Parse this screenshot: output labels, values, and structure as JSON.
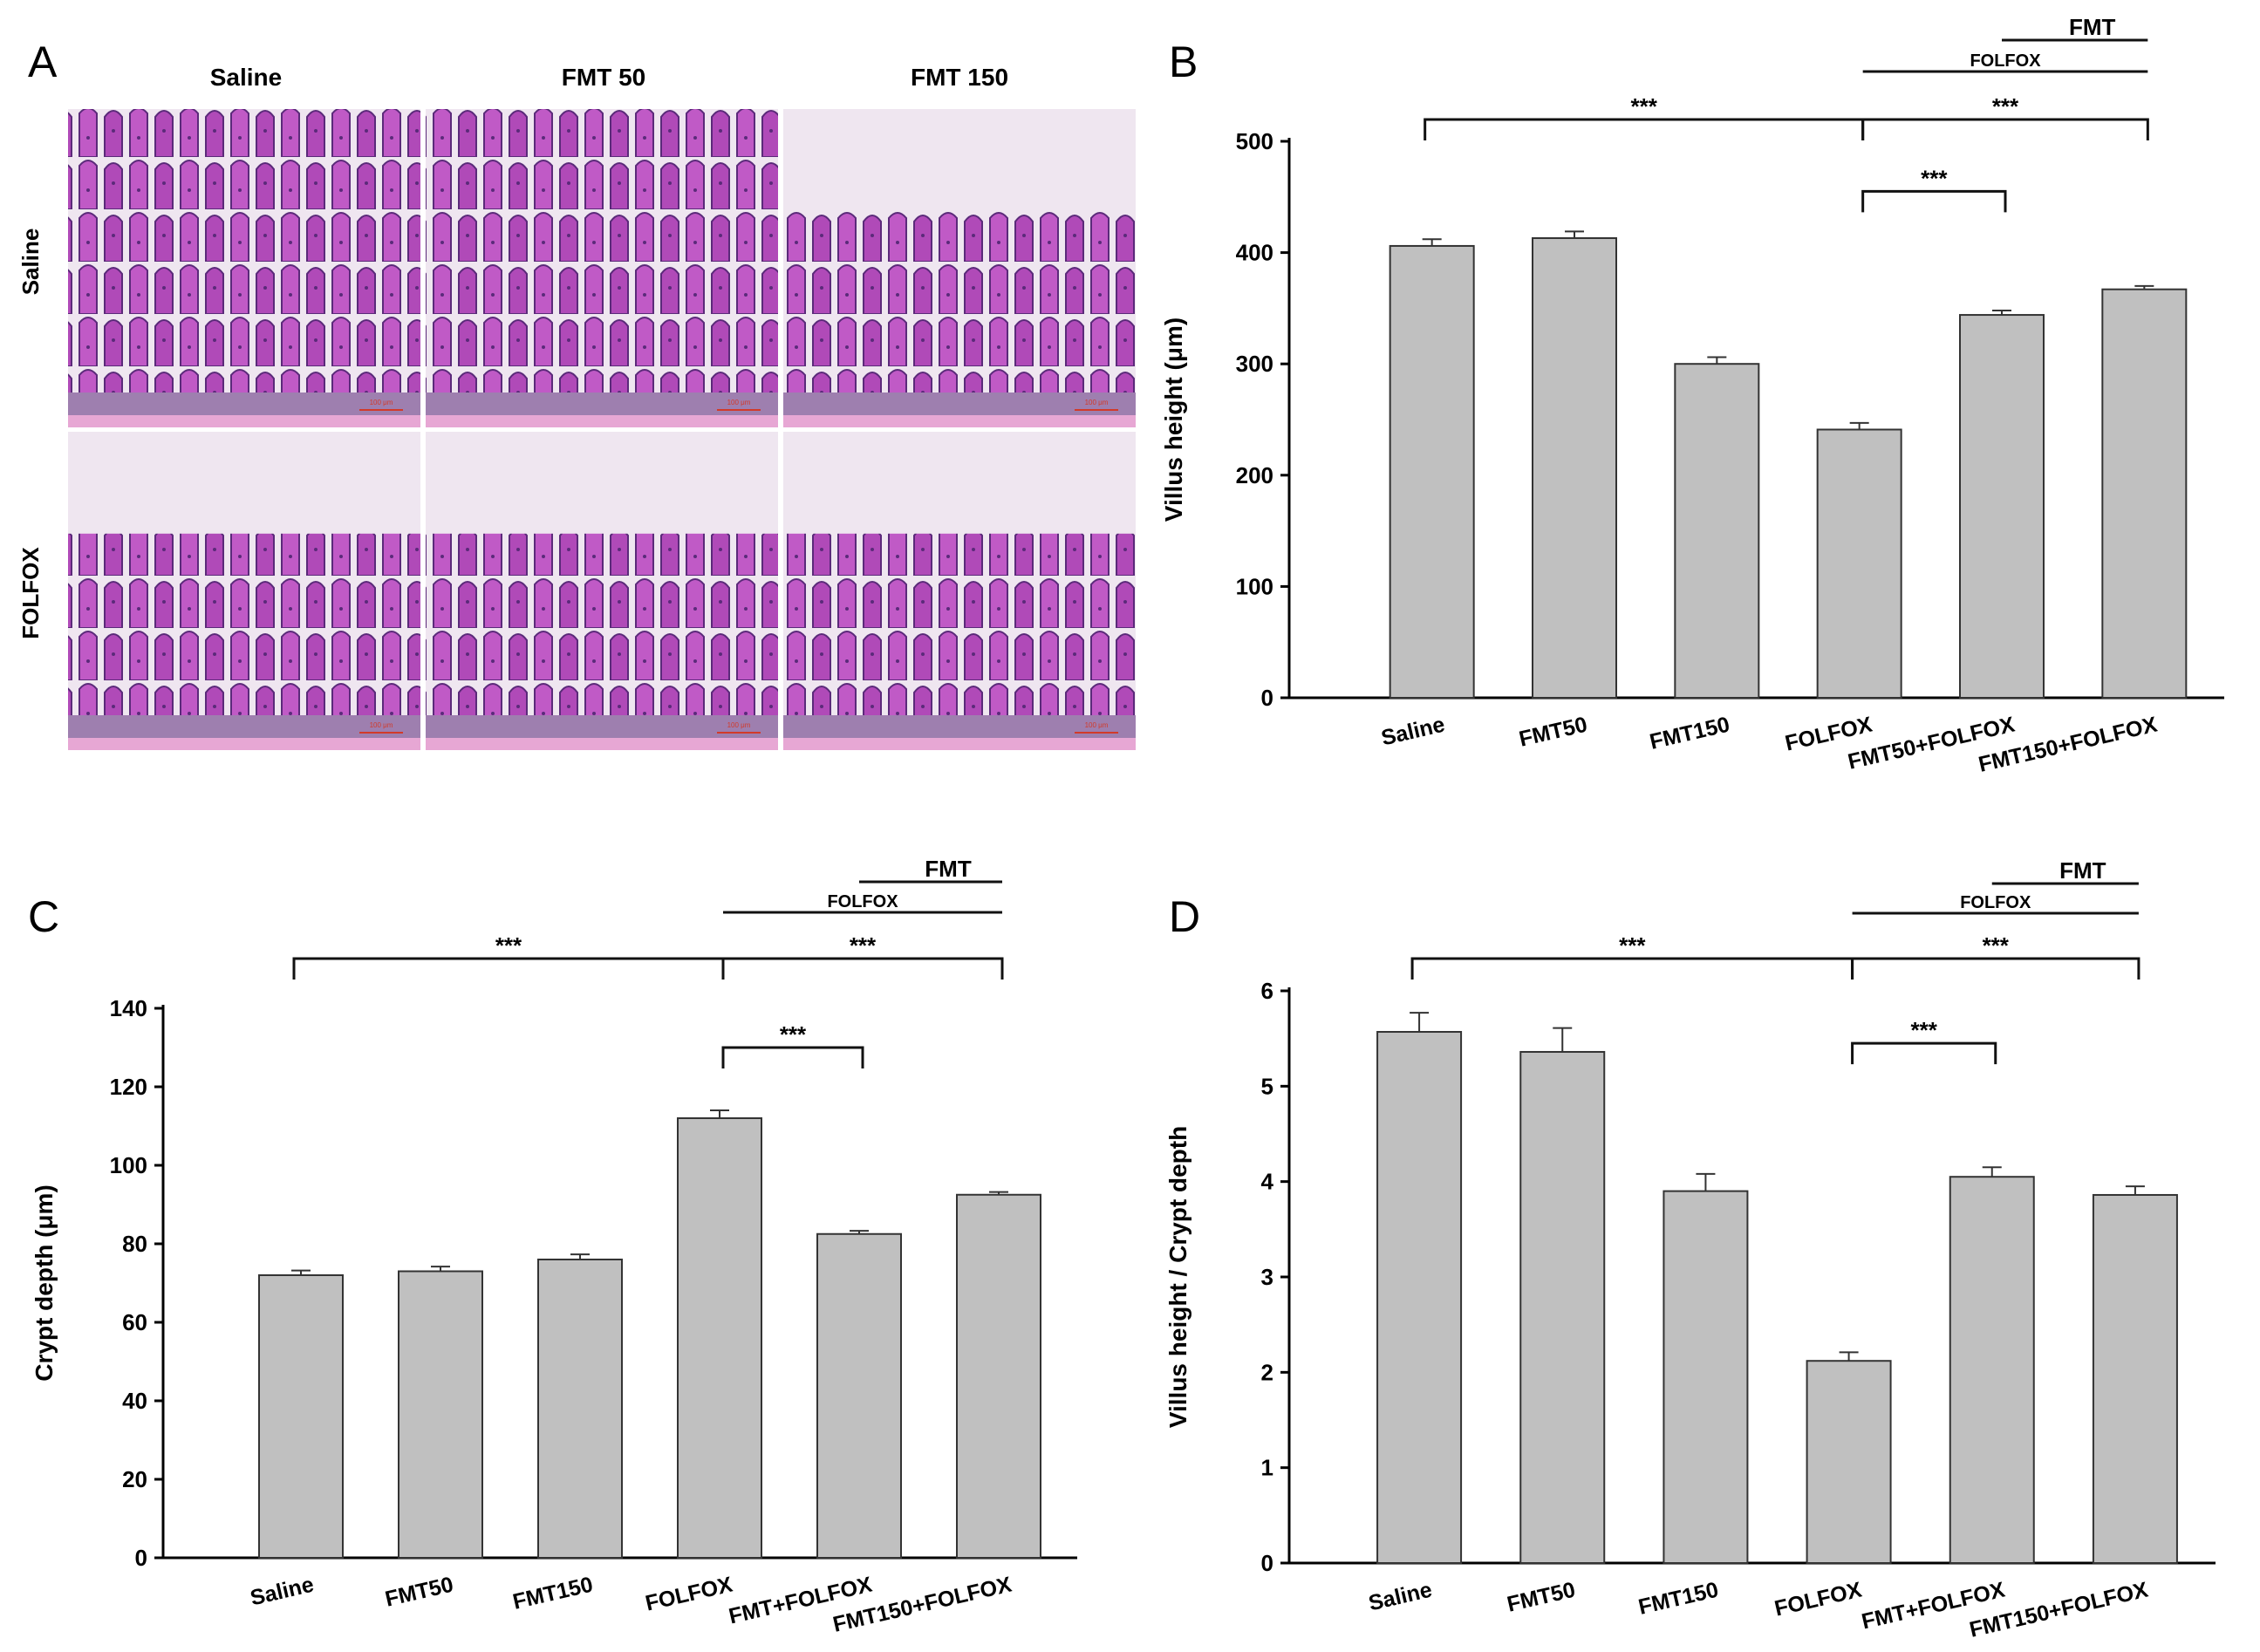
{
  "panel_letters": {
    "a": "A",
    "b": "B",
    "c": "C",
    "d": "D"
  },
  "histology": {
    "column_headers": [
      "Saline",
      "FMT 50",
      "FMT 150"
    ],
    "row_labels": [
      "Saline",
      "FOLFOX"
    ],
    "scale_bar_text": "100 μm",
    "colors": {
      "tissue": "#b04ab8",
      "tissue_dark": "#5b2a7a",
      "background": "#efe6f0",
      "scale_bar": "#d23a2a"
    }
  },
  "styles": {
    "bar_fill": "#c0c0c0",
    "bar_stroke": "#333333",
    "bracket": "#111111"
  },
  "chart_data": [
    {
      "id": "B",
      "type": "bar",
      "ylabel": "Villus height (μm)",
      "ylim": [
        0,
        500
      ],
      "yticks": [
        0,
        100,
        200,
        300,
        400,
        500
      ],
      "categories": [
        "Saline",
        "FMT50",
        "FMT150",
        "FOLFOX",
        "FMT50+FOLFOX",
        "FMT150+FOLFOX"
      ],
      "values": [
        406,
        413,
        300,
        241,
        344,
        367
      ],
      "errors": [
        6,
        6,
        6,
        6,
        4,
        3
      ],
      "significance": [
        {
          "from": 0,
          "to": 3,
          "label": "***"
        },
        {
          "from": 3,
          "to": 5,
          "label": "***"
        },
        {
          "from": 3,
          "to": 4,
          "label": "***"
        }
      ],
      "factor_lines": [
        {
          "label": "FOLFOX",
          "from": 3,
          "to": 5
        },
        {
          "label": "FMT",
          "from": 4,
          "to": 5
        }
      ]
    },
    {
      "id": "C",
      "type": "bar",
      "ylabel": "Crypt depth (μm)",
      "ylim": [
        0,
        140
      ],
      "yticks": [
        0,
        20,
        40,
        60,
        80,
        100,
        120,
        140
      ],
      "categories": [
        "Saline",
        "FMT50",
        "FMT150",
        "FOLFOX",
        "FMT+FOLFOX",
        "FMT150+FOLFOX"
      ],
      "values": [
        72,
        73,
        76,
        112,
        82.5,
        92.5
      ],
      "errors": [
        1.2,
        1.2,
        1.3,
        2,
        0.8,
        0.7
      ],
      "significance": [
        {
          "from": 0,
          "to": 3,
          "label": "***"
        },
        {
          "from": 3,
          "to": 5,
          "label": "***"
        },
        {
          "from": 3,
          "to": 4,
          "label": "***"
        }
      ],
      "factor_lines": [
        {
          "label": "FOLFOX",
          "from": 3,
          "to": 5
        },
        {
          "label": "FMT",
          "from": 4,
          "to": 5
        }
      ]
    },
    {
      "id": "D",
      "type": "bar",
      "ylabel": "Villus height / Crypt depth",
      "ylim": [
        0,
        6
      ],
      "yticks": [
        0,
        1,
        2,
        3,
        4,
        5,
        6
      ],
      "categories": [
        "Saline",
        "FMT50",
        "FMT150",
        "FOLFOX",
        "FMT+FOLFOX",
        "FMT150+FOLFOX"
      ],
      "values": [
        5.57,
        5.36,
        3.9,
        2.12,
        4.05,
        3.86
      ],
      "errors": [
        0.2,
        0.25,
        0.18,
        0.09,
        0.1,
        0.09
      ],
      "significance": [
        {
          "from": 0,
          "to": 3,
          "label": "***"
        },
        {
          "from": 3,
          "to": 5,
          "label": "***"
        },
        {
          "from": 3,
          "to": 4,
          "label": "***"
        }
      ],
      "factor_lines": [
        {
          "label": "FOLFOX",
          "from": 3,
          "to": 5
        },
        {
          "label": "FMT",
          "from": 4,
          "to": 5
        }
      ]
    }
  ]
}
